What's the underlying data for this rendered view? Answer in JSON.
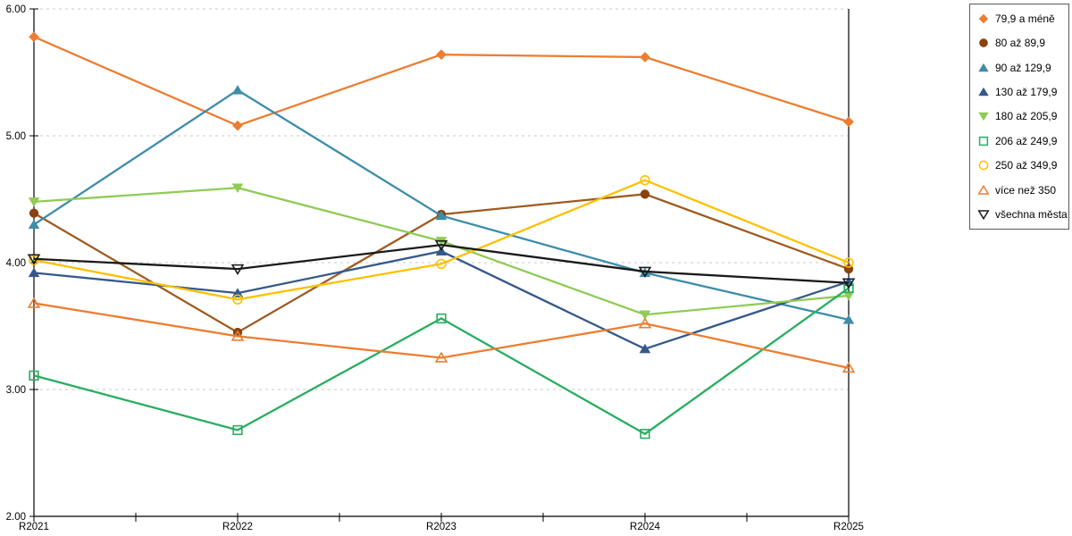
{
  "chart_data": {
    "type": "line",
    "title": "",
    "xlabel": "",
    "ylabel": "",
    "categories": [
      "R2021",
      "R2022",
      "R2023",
      "R2024",
      "R2025"
    ],
    "series": [
      {
        "name": "79,9 a méně",
        "marker": "diamond",
        "fill": "solid",
        "color": "#ED7D31",
        "values": [
          5.78,
          5.08,
          5.64,
          5.62,
          5.11
        ]
      },
      {
        "name": "80 až 89,9",
        "marker": "circle",
        "fill": "solid",
        "color": "#9E5B21",
        "marker_color": "#8A420F",
        "values": [
          4.39,
          3.45,
          4.38,
          4.54,
          3.95
        ]
      },
      {
        "name": "90 až 129,9",
        "marker": "triangle-up",
        "fill": "solid",
        "color": "#3C8DA9",
        "values": [
          4.3,
          5.36,
          4.37,
          3.92,
          3.55
        ]
      },
      {
        "name": "130 až 179,9",
        "marker": "triangle-up",
        "fill": "solid",
        "color": "#35588C",
        "values": [
          3.92,
          3.76,
          4.09,
          3.32,
          3.85
        ]
      },
      {
        "name": "180 až 205,9",
        "marker": "triangle-down",
        "fill": "solid",
        "color": "#8FCB55",
        "values": [
          4.48,
          4.59,
          4.17,
          3.59,
          3.74
        ]
      },
      {
        "name": "206 až 249,9",
        "marker": "square",
        "fill": "open",
        "color": "#27AE60",
        "values": [
          3.11,
          2.68,
          3.56,
          2.65,
          3.8
        ]
      },
      {
        "name": "250 až 349,9",
        "marker": "circle",
        "fill": "open",
        "color": "#FFC000",
        "values": [
          4.02,
          3.71,
          3.99,
          4.65,
          4.0
        ]
      },
      {
        "name": "více než 350",
        "marker": "triangle-up",
        "fill": "open",
        "color": "#ED7D31",
        "values": [
          3.68,
          3.42,
          3.25,
          3.52,
          3.17
        ]
      },
      {
        "name": "všechna města",
        "marker": "triangle-down",
        "fill": "open",
        "color": "#1A1A1A",
        "values": [
          4.03,
          3.95,
          4.14,
          3.93,
          3.84
        ]
      }
    ],
    "y_axis": {
      "min": 2,
      "max": 6,
      "tick_values": [
        2,
        3,
        4,
        5,
        6
      ],
      "tick_labels": [
        "2.00",
        "3.00",
        "4.00",
        "5.00",
        "6.00"
      ]
    },
    "grid": "horizontal-dashed",
    "grid_color": "#C8C8C8",
    "axis_color": "#000000",
    "legend_position": "top-right"
  }
}
